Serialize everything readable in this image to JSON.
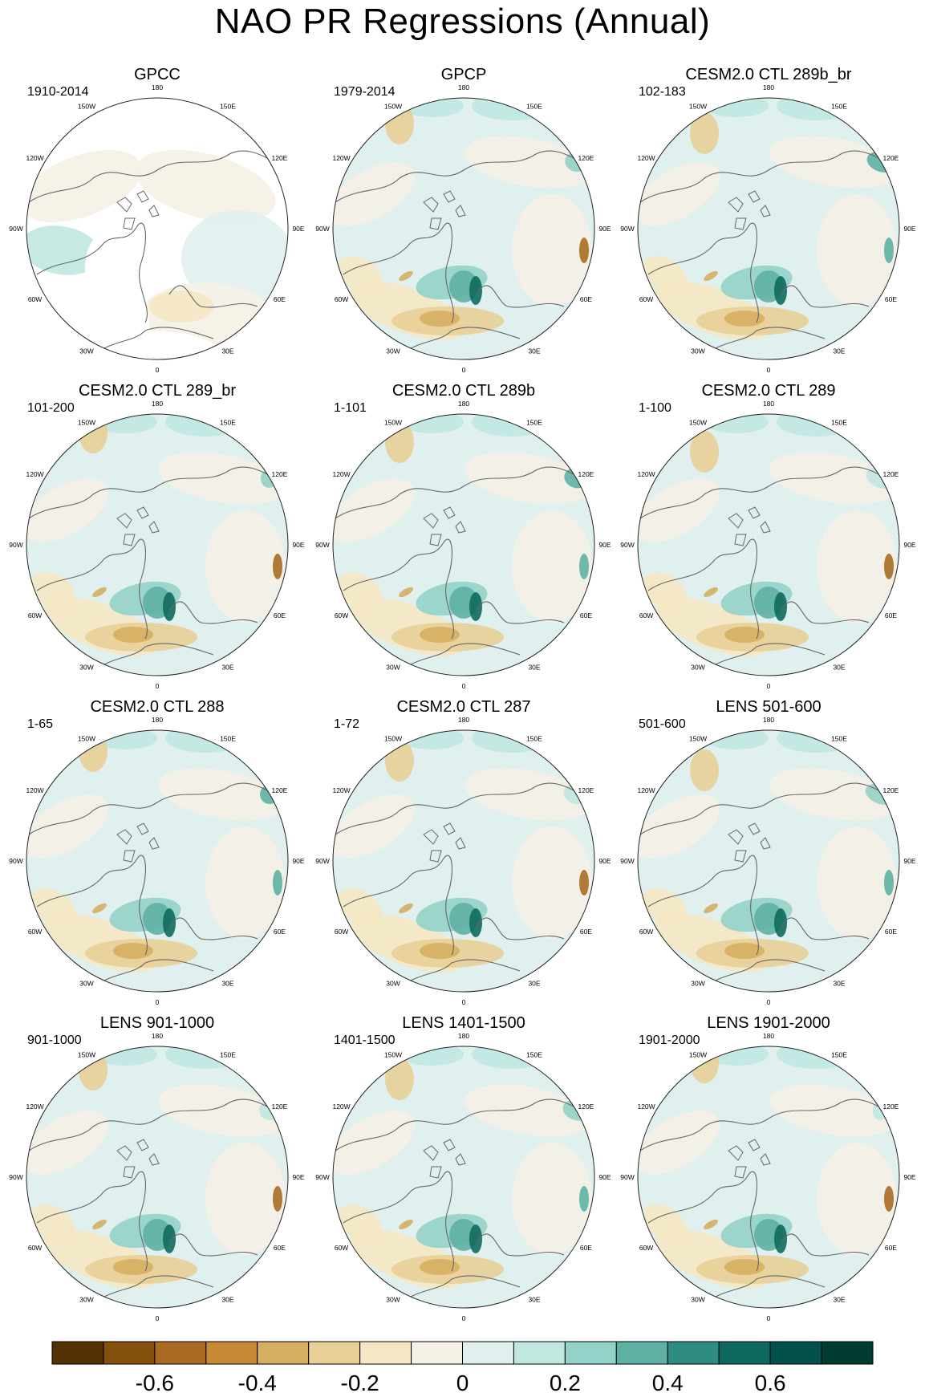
{
  "figure": {
    "title": "NAO PR Regressions (Annual)"
  },
  "chart_data": {
    "type": "heatmap",
    "projection": "north-polar-stereographic",
    "title": "NAO PR Regressions (Annual)",
    "panels": [
      {
        "title": "GPCC",
        "period": "1910-2014",
        "land_only": true
      },
      {
        "title": "GPCP",
        "period": "1979-2014"
      },
      {
        "title": "CESM2.0 CTL 289b_br",
        "period": "102-183"
      },
      {
        "title": "CESM2.0 CTL 289_br",
        "period": "101-200"
      },
      {
        "title": "CESM2.0 CTL 289b",
        "period": "1-101"
      },
      {
        "title": "CESM2.0 CTL 289",
        "period": "1-100"
      },
      {
        "title": "CESM2.0 CTL 288",
        "period": "1-65"
      },
      {
        "title": "CESM2.0 CTL 287",
        "period": "1-72"
      },
      {
        "title": "LENS 501-600",
        "period": "501-600"
      },
      {
        "title": "LENS 901-1000",
        "period": "901-1000"
      },
      {
        "title": "LENS 1401-1500",
        "period": "1401-1500"
      },
      {
        "title": "LENS 1901-2000",
        "period": "1901-2000"
      }
    ],
    "longitude_labels": [
      "180",
      "150E",
      "120E",
      "90E",
      "60E",
      "30E",
      "0",
      "30W",
      "60W",
      "90W",
      "120W",
      "150W"
    ],
    "colorbar": {
      "levels": [
        -0.7,
        -0.6,
        -0.5,
        -0.4,
        -0.3,
        -0.2,
        -0.1,
        0,
        0.1,
        0.2,
        0.3,
        0.4,
        0.5,
        0.6,
        0.7
      ],
      "tick_labels": [
        "-0.6",
        "-0.4",
        "-0.2",
        "0",
        "0.2",
        "0.4",
        "0.6"
      ],
      "colors": [
        "#543005",
        "#84500e",
        "#a86b21",
        "#c58a33",
        "#d5ae62",
        "#e8cf97",
        "#f5e7c3",
        "#f5f1e5",
        "#e0f0ee",
        "#c1e7e1",
        "#93d2c8",
        "#5fb0a4",
        "#2f8c80",
        "#0f6a5d",
        "#03524a",
        "#003c30"
      ]
    }
  }
}
